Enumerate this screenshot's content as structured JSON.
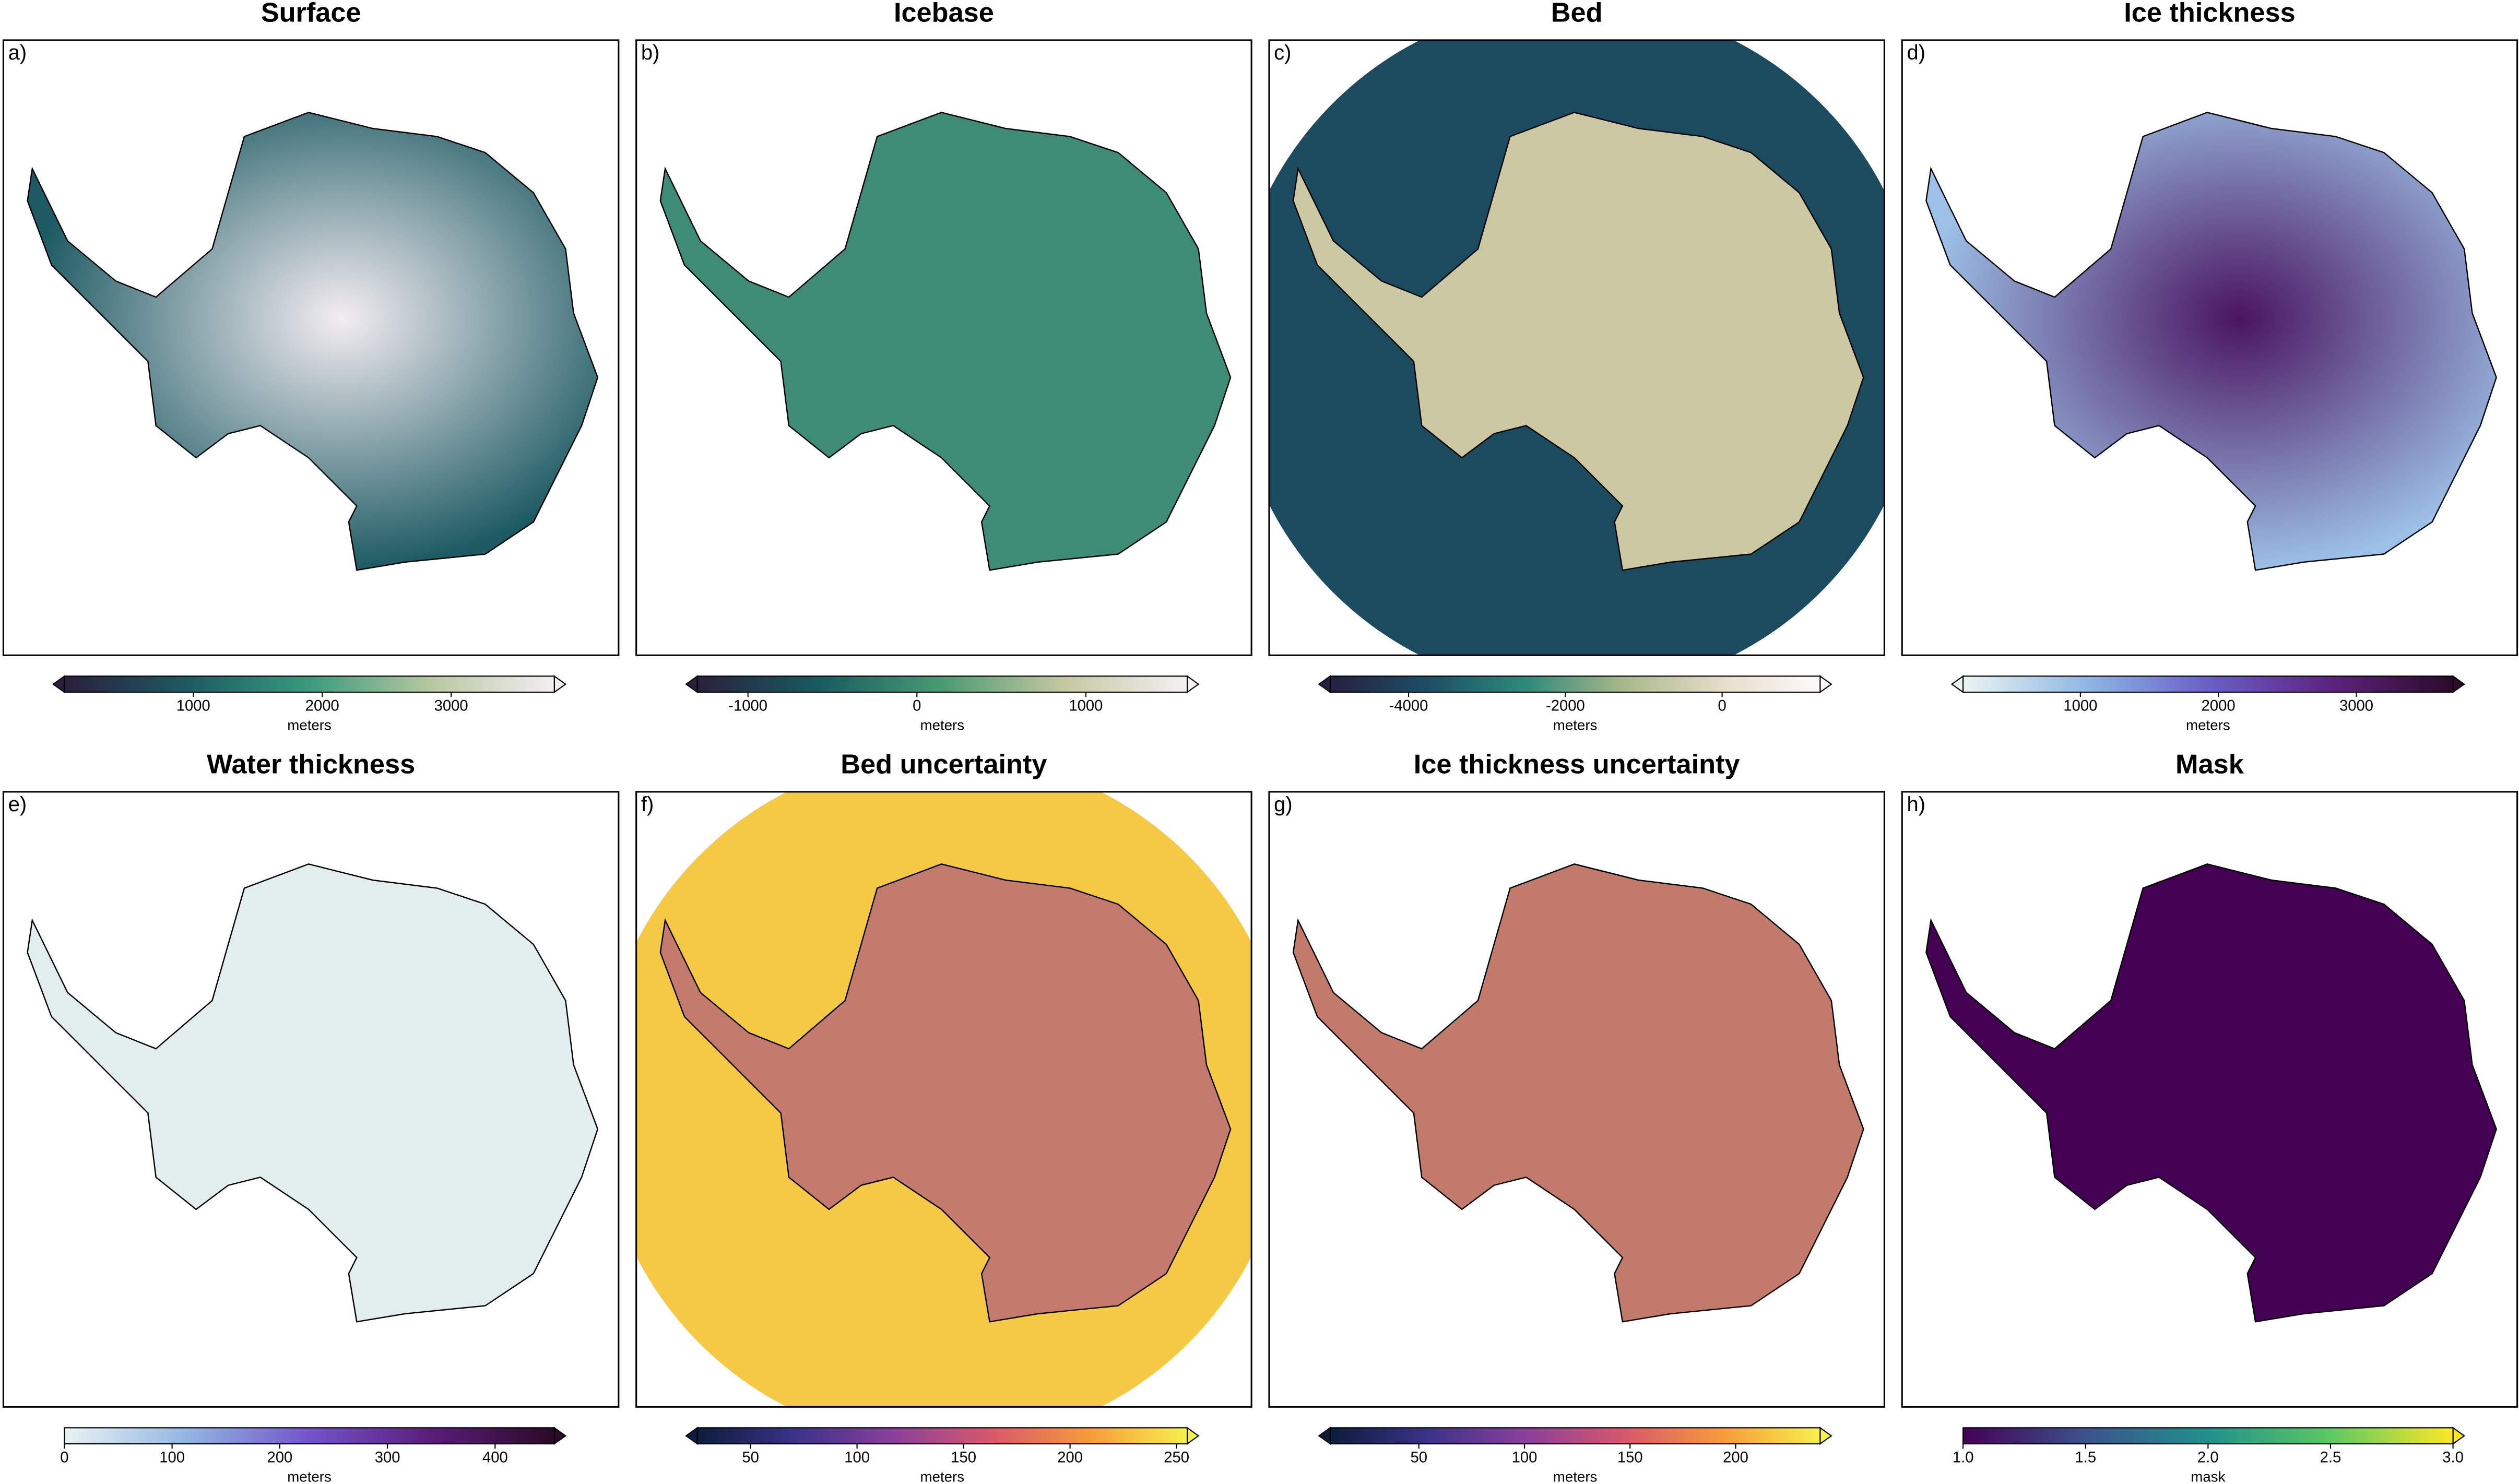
{
  "panels": [
    {
      "label": "a)",
      "title": "Surface",
      "colorbar": {
        "label": "meters",
        "lim": [
          0,
          3800
        ],
        "ticks": [
          1000,
          2000,
          3000
        ],
        "extend": "both",
        "colors": [
          "#2a1f3d",
          "#1d5a63",
          "#3a9a7e",
          "#b8c9a0",
          "#f3edf2"
        ]
      }
    },
    {
      "label": "b)",
      "title": "Icebase",
      "colorbar": {
        "label": "meters",
        "lim": [
          -1300,
          1600
        ],
        "ticks": [
          -1000,
          0,
          1000
        ],
        "extend": "both",
        "colors": [
          "#29203c",
          "#175c62",
          "#4c9a72",
          "#c5c9a0",
          "#f4f0f3"
        ]
      }
    },
    {
      "label": "c)",
      "title": "Bed",
      "colorbar": {
        "label": "meters",
        "lim": [
          -5000,
          1250
        ],
        "ticks": [
          -4000,
          -2000,
          0
        ],
        "extend": "both",
        "colors": [
          "#262040",
          "#1b4f66",
          "#2e8a7a",
          "#a9b98a",
          "#e6dcc9",
          "#fcfafa"
        ]
      }
    },
    {
      "label": "d)",
      "title": "Ice thickness",
      "colorbar": {
        "label": "meters",
        "lim": [
          150,
          3700
        ],
        "ticks": [
          1000,
          2000,
          3000
        ],
        "extend": "both",
        "colors": [
          "#eaf4f3",
          "#8fb8e3",
          "#6a5fc9",
          "#5e237e",
          "#2b0a2a"
        ]
      }
    },
    {
      "label": "e)",
      "title": "Water thickness",
      "colorbar": {
        "label": "meters",
        "lim": [
          0,
          455
        ],
        "ticks": [
          0,
          100,
          200,
          300,
          400
        ],
        "extend": "max",
        "colors": [
          "#e8f3f2",
          "#92b6e2",
          "#7254c9",
          "#5a1d7a",
          "#2a0a26"
        ]
      }
    },
    {
      "label": "f)",
      "title": "Bed uncertainty",
      "colorbar": {
        "label": "meters",
        "lim": [
          25,
          255
        ],
        "ticks": [
          50,
          100,
          150,
          200,
          250
        ],
        "extend": "both",
        "colors": [
          "#0c1d3b",
          "#3b3289",
          "#8a3f9a",
          "#d7576c",
          "#f79a3a",
          "#f7f04d"
        ]
      }
    },
    {
      "label": "g)",
      "title": "Ice thickness uncertainty",
      "colorbar": {
        "label": "meters",
        "lim": [
          8,
          240
        ],
        "ticks": [
          50,
          100,
          150,
          200
        ],
        "extend": "both",
        "colors": [
          "#0c1d3b",
          "#3b3289",
          "#8a3f9a",
          "#d7576c",
          "#f79a3a",
          "#f7f04d"
        ]
      }
    },
    {
      "label": "h)",
      "title": "Mask",
      "colorbar": {
        "label": "mask",
        "lim": [
          1,
          3
        ],
        "ticks": [
          {
            "value": 1,
            "label": "1.0"
          },
          {
            "value": 1.5,
            "label": "1.5"
          },
          {
            "value": 2,
            "label": "2.0"
          },
          {
            "value": 2.5,
            "label": "2.5"
          },
          {
            "value": 3,
            "label": "3.0"
          }
        ],
        "extend": "max",
        "colors": [
          "#440154",
          "#3b528b",
          "#21908c",
          "#5dc863",
          "#fde725"
        ]
      }
    }
  ]
}
